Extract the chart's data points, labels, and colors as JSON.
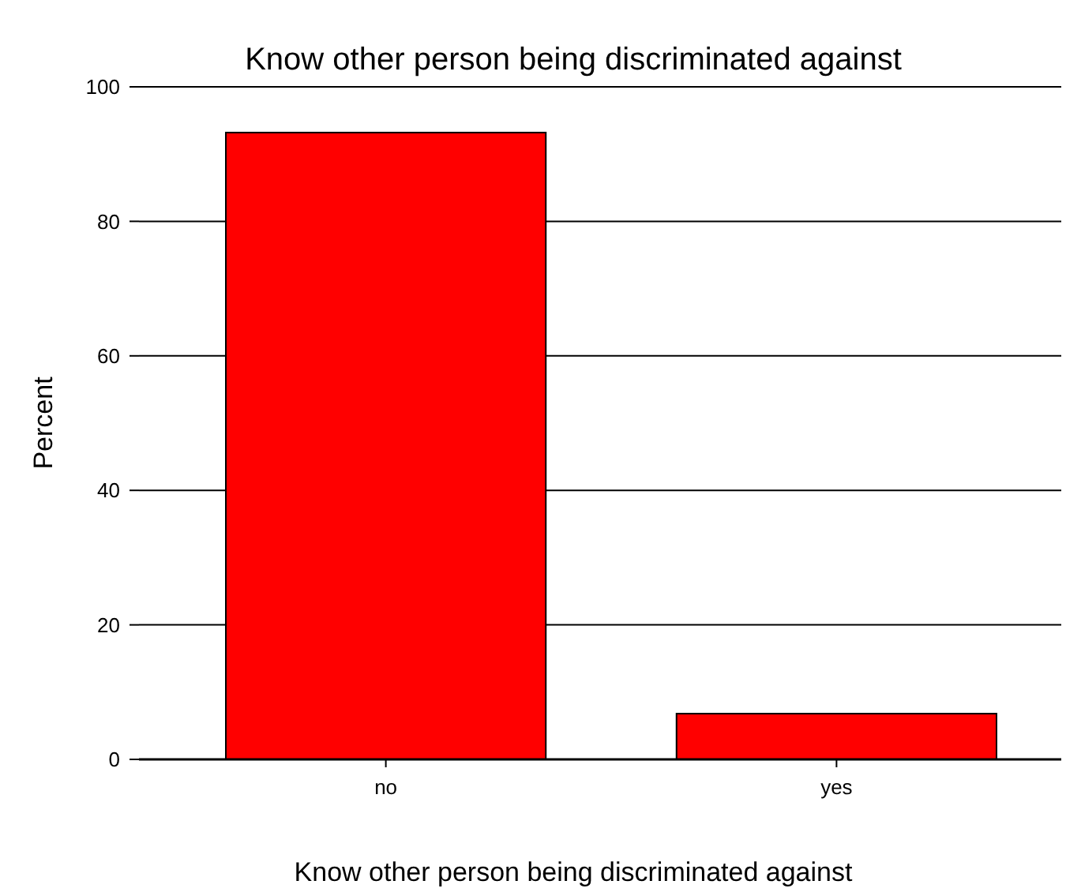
{
  "chart_data": {
    "type": "bar",
    "title": "Know other person being discriminated against",
    "xlabel": "Know other person being discriminated against",
    "ylabel": "Percent",
    "categories": [
      "no",
      "yes"
    ],
    "values": [
      93.2,
      6.8
    ],
    "color": "#ff0000",
    "ylim": [
      0,
      100
    ],
    "yticks": [
      0,
      20,
      40,
      60,
      80,
      100
    ],
    "grid": "y"
  }
}
